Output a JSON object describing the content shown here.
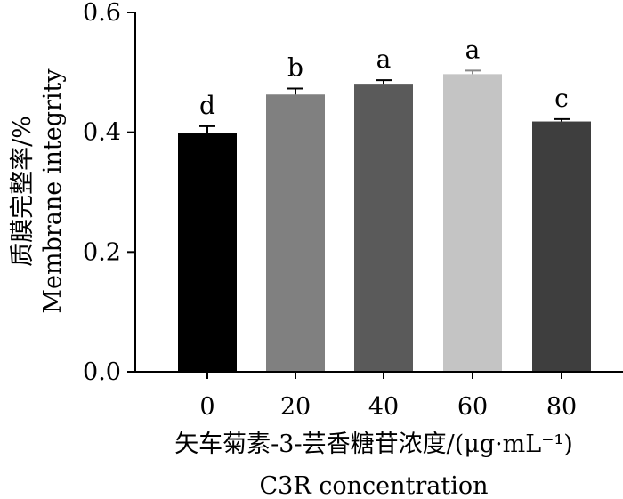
{
  "chart_data": {
    "type": "bar",
    "categories": [
      "0",
      "20",
      "40",
      "60",
      "80"
    ],
    "values": [
      0.398,
      0.463,
      0.481,
      0.497,
      0.418
    ],
    "errors": [
      0.012,
      0.01,
      0.006,
      0.006,
      0.004
    ],
    "significance_letters": [
      "d",
      "b",
      "a",
      "a",
      "c"
    ],
    "bar_colors": [
      "#000000",
      "#808080",
      "#5a5a5a",
      "#c4c4c4",
      "#3e3e3e"
    ],
    "xlabel_cn": "矢车菊素-3-芸香糖苷浓度/(μg·mL⁻¹)",
    "xlabel_en": "C3R concentration",
    "ylabel_cn": "质膜完整率/%",
    "ylabel_en": "Membrane integrity",
    "yticks": [
      "0.0",
      "0.2",
      "0.4",
      "0.6"
    ],
    "ylim": [
      0,
      0.6
    ],
    "grid": false,
    "legend": "none"
  }
}
